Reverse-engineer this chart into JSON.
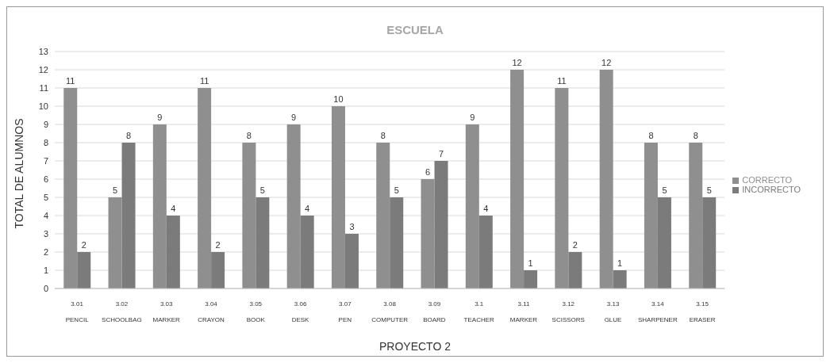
{
  "chart_data": {
    "type": "bar",
    "title": "ESCUELA",
    "xlabel": "PROYECTO 2",
    "ylabel": "TOTAL DE ALUMNOS",
    "categories": [
      "3.01\nPENCIL",
      "3.02\nSCHOOLBAG",
      "3.03\nMARKER",
      "3.04\nCRAYON",
      "3.05\nBOOK",
      "3.06\nDESK",
      "3.07\nPEN",
      "3.08\nCOMPUTER",
      "3.09\nBOARD",
      "3.1\nTEACHER",
      "3.11\nMARKER",
      "3.12\nSCISSORS",
      "3.13\nGLUE",
      "3.14\nSHARPENER",
      "3.15\nERASER"
    ],
    "series": [
      {
        "name": "CORRECTO",
        "color": "#8f8f8f",
        "values": [
          11,
          5,
          9,
          11,
          8,
          9,
          10,
          8,
          6,
          9,
          12,
          11,
          12,
          8,
          8
        ]
      },
      {
        "name": "INCORRECTO",
        "color": "#7b7b7b",
        "values": [
          2,
          8,
          4,
          2,
          5,
          4,
          3,
          5,
          7,
          4,
          1,
          2,
          1,
          5,
          5
        ]
      }
    ],
    "ylim": [
      0,
      13
    ],
    "yticks": [
      0,
      1,
      2,
      3,
      4,
      5,
      6,
      7,
      8,
      9,
      10,
      11,
      12,
      13
    ],
    "grid": "y",
    "legend": "right",
    "data_labels": true
  }
}
